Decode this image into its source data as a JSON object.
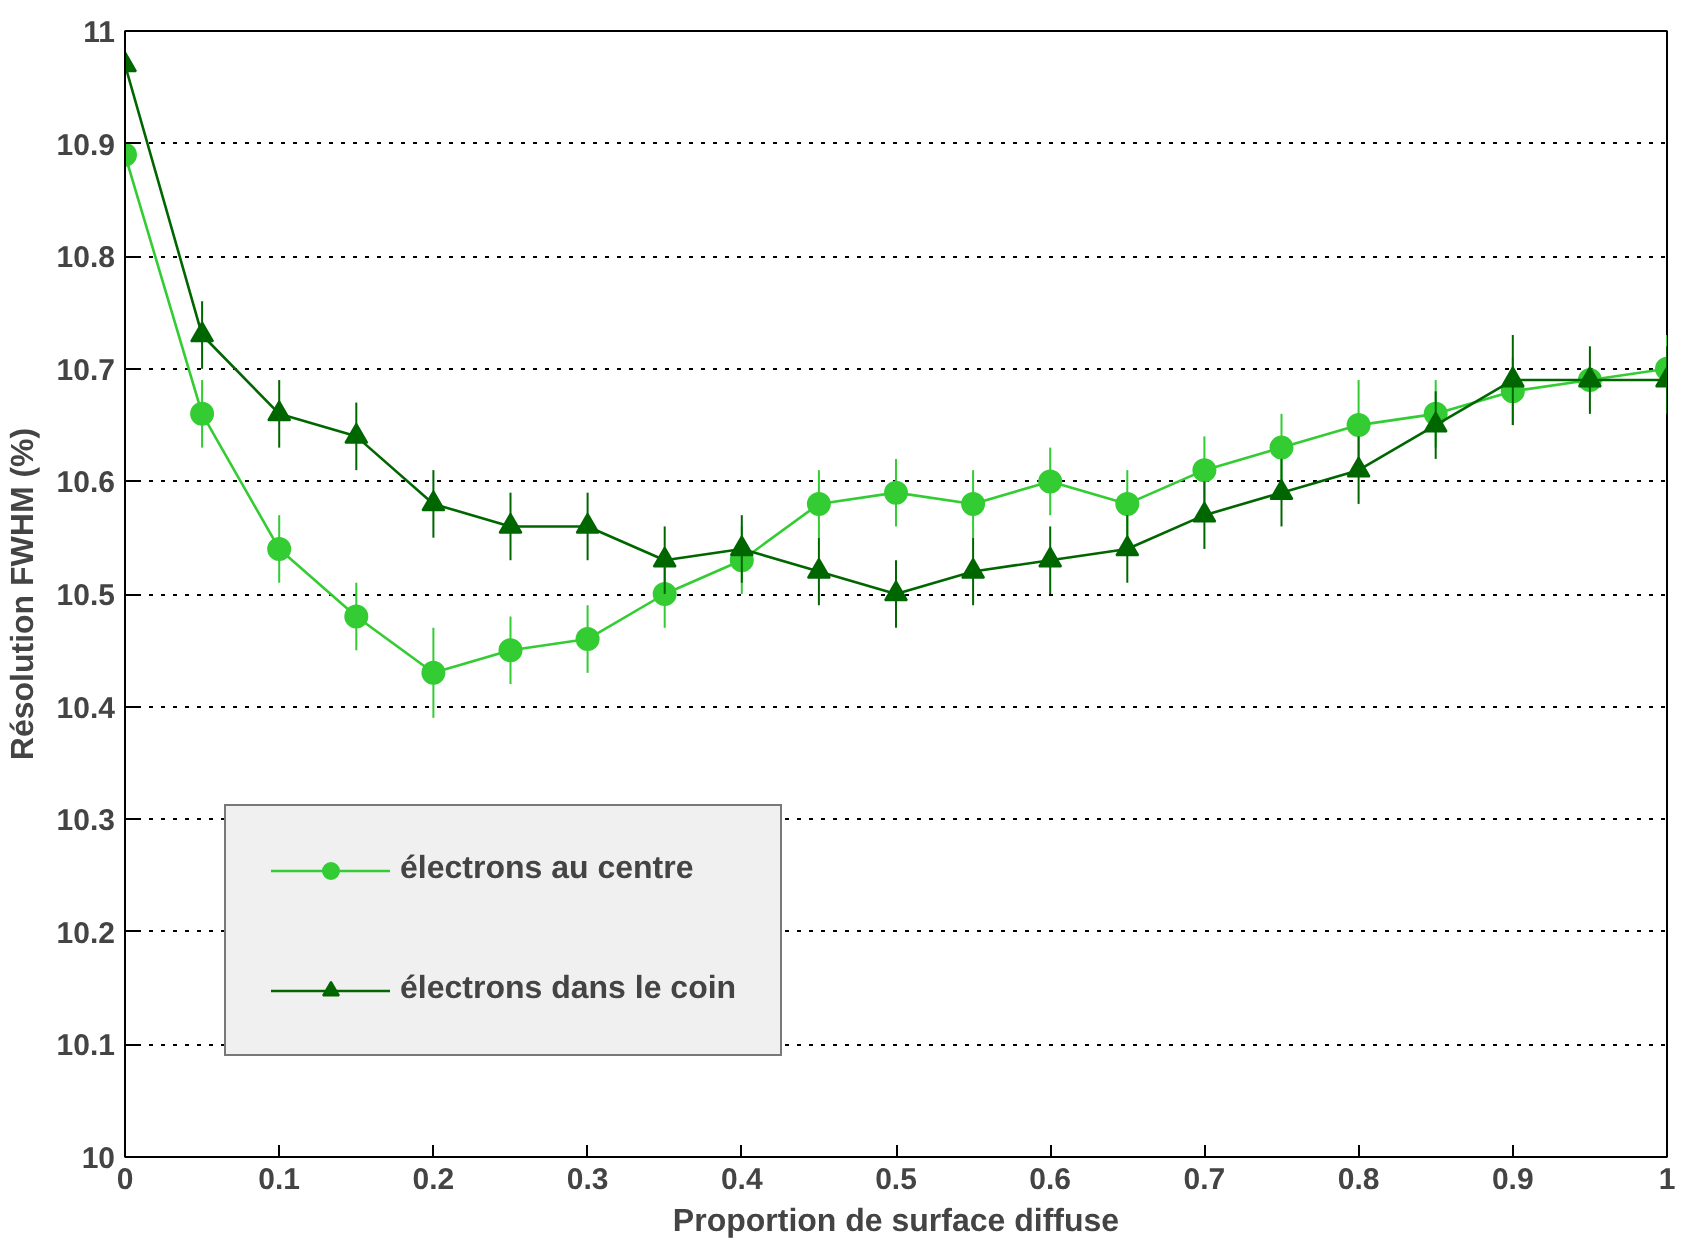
{
  "chart_data": {
    "type": "line",
    "xlabel": "Proportion de surface diffuse",
    "ylabel": "Résolution FWHM (%)",
    "x": [
      0,
      0.05,
      0.1,
      0.15,
      0.2,
      0.25,
      0.3,
      0.35,
      0.4,
      0.45,
      0.5,
      0.55,
      0.6,
      0.65,
      0.7,
      0.75,
      0.8,
      0.85,
      0.9,
      0.95,
      1
    ],
    "series": [
      {
        "name": "électrons au centre",
        "color": "#33cc33",
        "marker": "circle",
        "values": [
          10.89,
          10.66,
          10.54,
          10.48,
          10.43,
          10.45,
          10.46,
          10.5,
          10.53,
          10.58,
          10.59,
          10.58,
          10.6,
          10.58,
          10.61,
          10.63,
          10.65,
          10.66,
          10.68,
          10.69,
          10.7
        ],
        "errors": [
          null,
          0.03,
          0.03,
          0.03,
          0.04,
          0.03,
          0.03,
          0.03,
          0.03,
          0.03,
          0.03,
          0.03,
          0.03,
          0.03,
          0.03,
          0.03,
          0.04,
          0.03,
          0.03,
          null,
          0.03
        ]
      },
      {
        "name": "électrons dans le coin",
        "color": "#006600",
        "marker": "triangle",
        "values": [
          10.97,
          10.73,
          10.66,
          10.64,
          10.58,
          10.56,
          10.56,
          10.53,
          10.54,
          10.52,
          10.5,
          10.52,
          10.53,
          10.54,
          10.57,
          10.59,
          10.61,
          10.65,
          10.69,
          10.69,
          10.69
        ],
        "errors": [
          null,
          0.03,
          0.03,
          0.03,
          0.03,
          0.03,
          0.03,
          0.03,
          0.03,
          0.03,
          0.03,
          0.03,
          0.03,
          0.03,
          0.03,
          0.03,
          0.03,
          0.03,
          0.04,
          0.03,
          0.03
        ]
      }
    ],
    "xlim": [
      0,
      1
    ],
    "xticks": [
      0,
      0.1,
      0.2,
      0.3,
      0.4,
      0.5,
      0.6,
      0.7,
      0.8,
      0.9,
      1
    ],
    "ylim": [
      10,
      11
    ],
    "yticks": [
      10,
      10.1,
      10.2,
      10.3,
      10.4,
      10.5,
      10.6,
      10.7,
      10.8,
      10.9,
      11
    ],
    "grid": "y",
    "legend": "bottom left",
    "line_style": "solid"
  }
}
